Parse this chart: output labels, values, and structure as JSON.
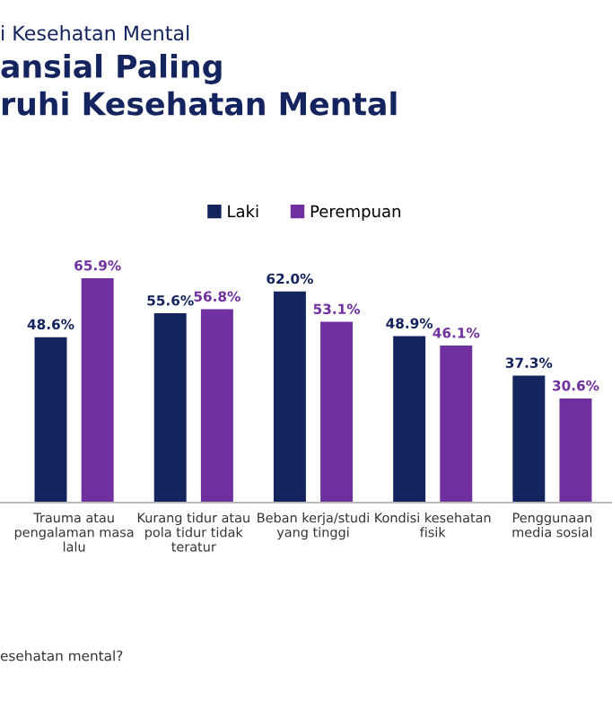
{
  "chart_data": {
    "type": "bar",
    "subtitle": "i Kesehatan Mental",
    "title": "ansial Paling\nruhi Kesehatan Mental",
    "categories": [
      "Trauma atau\npengalaman masa\nlalu",
      "Kurang tidur atau\npola tidur tidak\nteratur",
      "Beban kerja/studi\nyang tinggi",
      "Kondisi kesehatan\nfisik",
      "Penggunaan\nmedia sosial"
    ],
    "series": [
      {
        "name": "Laki",
        "color": "#14245e",
        "values": [
          48.6,
          55.6,
          62.0,
          48.9,
          37.3
        ],
        "value_labels": [
          "48.6%",
          "55.6%",
          "62.0%",
          "48.9%",
          "37.3%"
        ]
      },
      {
        "name": "Perempuan",
        "color": "#7030a0",
        "values": [
          65.9,
          56.8,
          53.1,
          46.1,
          30.6
        ],
        "value_labels": [
          "65.9%",
          "56.8%",
          "53.1%",
          "46.1%",
          "30.6%"
        ]
      }
    ],
    "legend": "top right",
    "grid": false,
    "annotations": [
      "esehatan mental?"
    ]
  }
}
